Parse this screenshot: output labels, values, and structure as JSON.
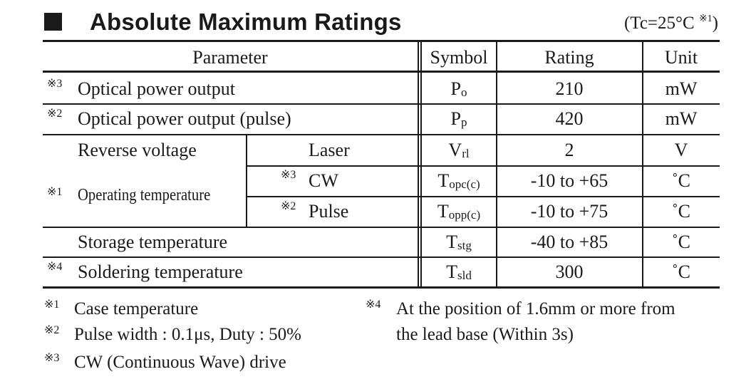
{
  "header": {
    "title": "Absolute Maximum Ratings",
    "condition": "(Tc=25°C ",
    "condition_note": "※1",
    "condition_close": ")"
  },
  "table": {
    "columns": [
      "Parameter",
      "Symbol",
      "Rating",
      "Unit"
    ],
    "rows": [
      {
        "note": "※3",
        "parameter": "Optical power output",
        "symbol_main": "P",
        "symbol_sub": "o",
        "rating": "210",
        "unit": "mW"
      },
      {
        "note": "※2",
        "parameter": "Optical power output (pulse)",
        "symbol_main": "P",
        "symbol_sub": "p",
        "rating": "420",
        "unit": "mW"
      },
      {
        "note": "",
        "parameter": "Reverse voltage",
        "sub_parameter": "Laser",
        "symbol_main": "V",
        "symbol_sub": "rl",
        "rating": "2",
        "unit": "V"
      },
      {
        "note": "※1",
        "parameter": "Operating temperature",
        "sub_note": "※3",
        "sub_parameter": "CW",
        "symbol_main": "T",
        "symbol_sub": "opc(c)",
        "rating": "-10 to +65",
        "unit": "˚C"
      },
      {
        "sub_note": "※2",
        "sub_parameter": "Pulse",
        "symbol_main": "T",
        "symbol_sub": "opp(c)",
        "rating": "-10 to +75",
        "unit": "˚C"
      },
      {
        "note": "",
        "parameter": "Storage temperature",
        "symbol_main": "T",
        "symbol_sub": "stg",
        "rating": "-40 to +85",
        "unit": "˚C"
      },
      {
        "note": "※4",
        "parameter": "Soldering temperature",
        "symbol_main": "T",
        "symbol_sub": "sld",
        "rating": "300",
        "unit": "˚C"
      }
    ]
  },
  "notes": [
    {
      "mark": "※1",
      "text": "Case temperature"
    },
    {
      "mark": "※2",
      "text": "Pulse width : 0.1μs, Duty : 50%"
    },
    {
      "mark": "※3",
      "text": "CW (Continuous Wave) drive"
    },
    {
      "mark": "※4",
      "text": "At the position of 1.6mm or more from",
      "text2": "the lead base (Within 3s)"
    }
  ]
}
